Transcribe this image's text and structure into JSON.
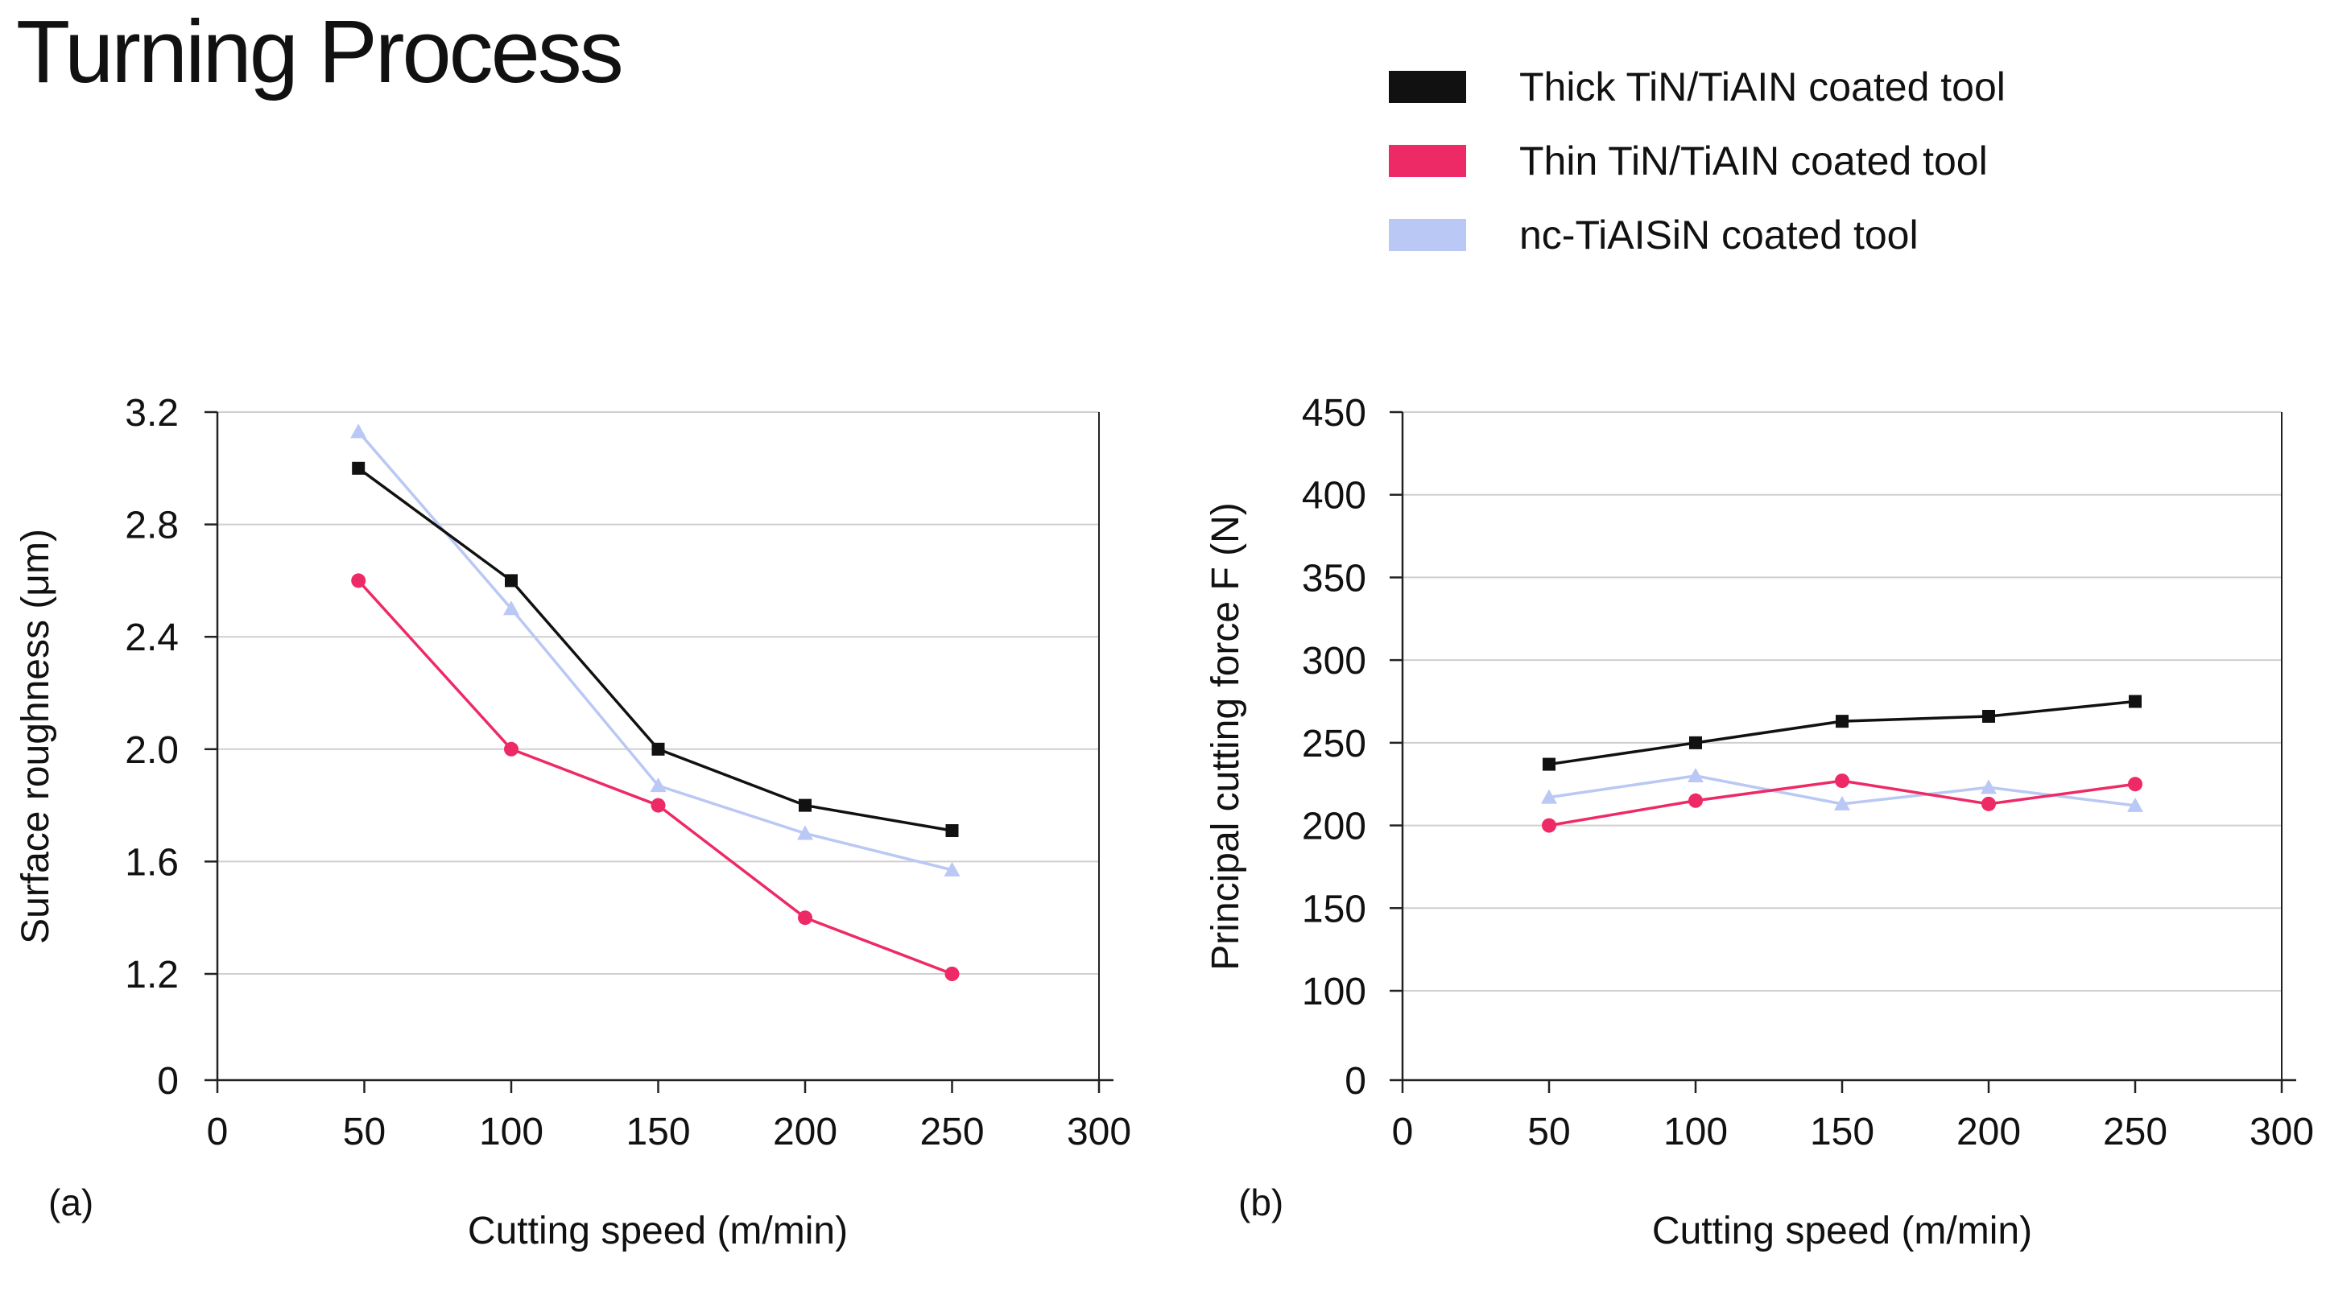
{
  "title": "Turning Process",
  "legend": {
    "items": [
      {
        "label": "Thick TiN/TiAIN coated tool",
        "color": "#111111"
      },
      {
        "label": "Thin TiN/TiAIN coated tool",
        "color": "#ee2a66"
      },
      {
        "label": "nc-TiAISiN coated tool",
        "color": "#b9c8f4"
      }
    ]
  },
  "chart_data": [
    {
      "type": "line",
      "panel_label": "(a)",
      "xlabel": "Cutting speed (m/min)",
      "ylabel": "Surface roughness (μm)",
      "xlim": [
        0,
        300
      ],
      "ylim": [
        0,
        3.2
      ],
      "x_ticks": [
        0,
        50,
        100,
        150,
        200,
        250,
        300
      ],
      "y_ticks": [
        {
          "value": 0,
          "label": "0"
        },
        {
          "value": 1.2,
          "label": "1.2"
        },
        {
          "value": 1.6,
          "label": "1.6"
        },
        {
          "value": 2.0,
          "label": "2.0"
        },
        {
          "value": 2.4,
          "label": "2.4"
        },
        {
          "value": 2.8,
          "label": "2.8"
        },
        {
          "value": 3.2,
          "label": "3.2"
        }
      ],
      "y_axis_break": true,
      "grid": "horizontal",
      "series": [
        {
          "name": "Thick TiN/TiAIN coated tool",
          "color": "#111111",
          "marker": "square",
          "x": [
            48,
            100,
            150,
            200,
            250
          ],
          "values": [
            3.0,
            2.6,
            2.0,
            1.8,
            1.71
          ]
        },
        {
          "name": "Thin TiN/TiAIN coated tool",
          "color": "#ee2a66",
          "marker": "circle",
          "x": [
            48,
            100,
            150,
            200,
            250
          ],
          "values": [
            2.6,
            2.0,
            1.8,
            1.4,
            1.2
          ]
        },
        {
          "name": "nc-TiAISiN coated tool",
          "color": "#b9c8f4",
          "marker": "triangle",
          "x": [
            48,
            100,
            150,
            200,
            250
          ],
          "values": [
            3.13,
            2.5,
            1.87,
            1.7,
            1.57
          ]
        }
      ]
    },
    {
      "type": "line",
      "panel_label": "(b)",
      "xlabel": "Cutting speed (m/min)",
      "ylabel": "Principal cutting force F (N)",
      "xlim": [
        0,
        300
      ],
      "ylim": [
        0,
        450
      ],
      "x_ticks": [
        0,
        50,
        100,
        150,
        200,
        250,
        300
      ],
      "y_ticks": [
        {
          "value": 0,
          "label": "0"
        },
        {
          "value": 100,
          "label": "100"
        },
        {
          "value": 150,
          "label": "150"
        },
        {
          "value": 200,
          "label": "200"
        },
        {
          "value": 250,
          "label": "250"
        },
        {
          "value": 300,
          "label": "300"
        },
        {
          "value": 350,
          "label": "350"
        },
        {
          "value": 400,
          "label": "400"
        },
        {
          "value": 450,
          "label": "450"
        }
      ],
      "y_axis_break": true,
      "grid": "horizontal",
      "series": [
        {
          "name": "Thick TiN/TiAIN coated tool",
          "color": "#111111",
          "marker": "square",
          "x": [
            50,
            100,
            150,
            200,
            250
          ],
          "values": [
            237,
            250,
            263,
            266,
            275
          ]
        },
        {
          "name": "Thin TiN/TiAIN coated tool",
          "color": "#ee2a66",
          "marker": "circle",
          "x": [
            50,
            100,
            150,
            200,
            250
          ],
          "values": [
            200,
            215,
            227,
            213,
            225
          ]
        },
        {
          "name": "nc-TiAISiN coated tool",
          "color": "#b9c8f4",
          "marker": "triangle",
          "x": [
            50,
            100,
            150,
            200,
            250
          ],
          "values": [
            217,
            230,
            213,
            223,
            212
          ]
        }
      ]
    }
  ]
}
